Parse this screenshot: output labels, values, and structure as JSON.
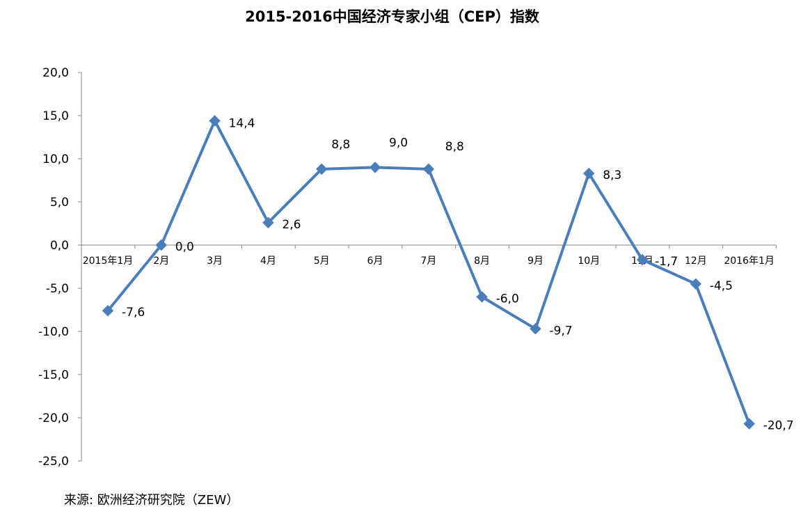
{
  "chart_data": {
    "type": "line",
    "title": "2015-2016中国经济专家小组（CEP）指数",
    "categories": [
      "2015年1月",
      "2月",
      "3月",
      "4月",
      "5月",
      "6月",
      "7月",
      "8月",
      "9月",
      "10月",
      "11月",
      "12月",
      "2016年1月"
    ],
    "values": [
      -7.6,
      0.0,
      14.4,
      2.6,
      8.8,
      9.0,
      8.8,
      -6.0,
      -9.7,
      8.3,
      -1.7,
      -4.5,
      -20.7
    ],
    "data_labels": [
      "-7,6",
      "0,0",
      "14,4",
      "2,6",
      "8,8",
      "9,0",
      "8,8",
      "-6,0",
      "-9,7",
      "8,3",
      "-1,7",
      "-4,5",
      "-20,7"
    ],
    "ylim": [
      -25,
      20
    ],
    "yticks": [
      "20,0",
      "15,0",
      "10,0",
      "5,0",
      "0,0",
      "-5,0",
      "-10,0",
      "-15,0",
      "-20,0",
      "-25,0"
    ],
    "ytick_values": [
      20,
      15,
      10,
      5,
      0,
      -5,
      -10,
      -15,
      -20,
      -25
    ],
    "xlabel": "",
    "ylabel": "",
    "grid": false,
    "marker": "diamond",
    "line_color": "#4a7ebb"
  },
  "source_note": "来源: 欧洲经济研究院（ZEW）"
}
